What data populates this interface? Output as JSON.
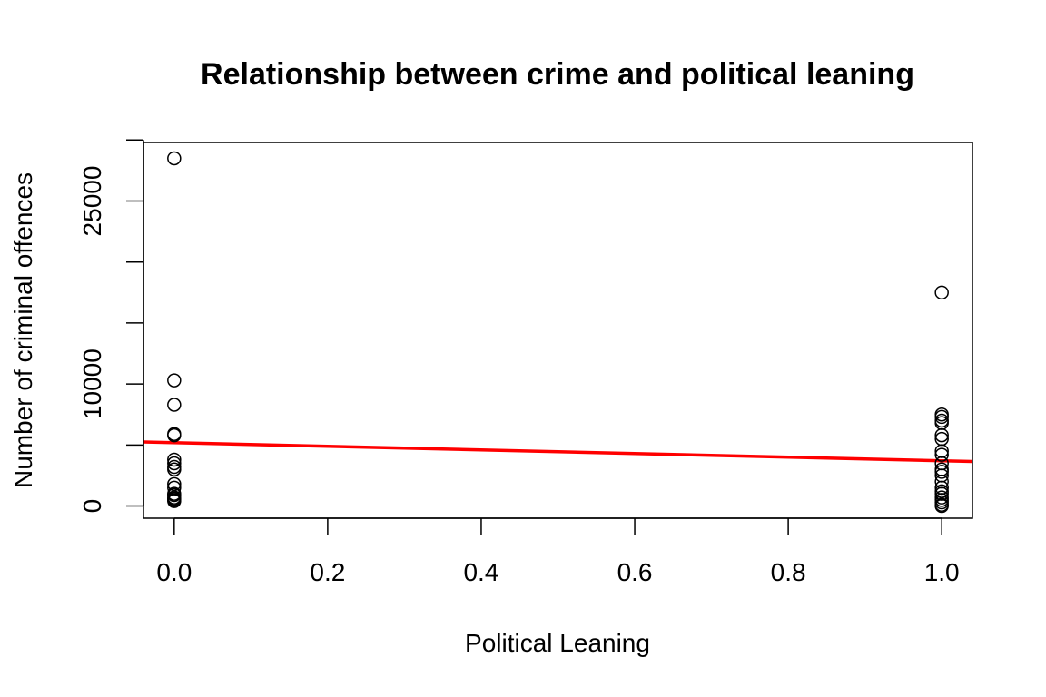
{
  "chart_data": {
    "type": "scatter",
    "title": "Relationship between crime and political leaning",
    "xlabel": "Political Leaning",
    "ylabel": "Number of criminal offences",
    "xlim": [
      -0.04,
      1.04
    ],
    "ylim": [
      -1000,
      29800
    ],
    "xticks": [
      0,
      0.2,
      0.4,
      0.6,
      0.8,
      1.0
    ],
    "xtick_labels": [
      "0.0",
      "0.2",
      "0.4",
      "0.6",
      "0.8",
      "1.0"
    ],
    "yticks": [
      0,
      5000,
      10000,
      15000,
      20000,
      25000,
      30000
    ],
    "ytick_labels": [
      "0",
      "",
      "10000",
      "",
      "",
      "25000",
      ""
    ],
    "grid": false,
    "point_style": "open-circle",
    "series": [
      {
        "x": [
          0,
          0,
          0,
          0,
          0,
          0,
          0,
          0,
          0,
          0,
          0,
          0,
          0,
          0,
          0,
          0,
          0,
          1,
          1,
          1,
          1,
          1,
          1,
          1,
          1,
          1,
          1,
          1,
          1,
          1,
          1,
          1,
          1,
          1,
          1,
          1,
          1,
          1,
          1
        ],
        "y": [
          28500,
          10300,
          8300,
          5900,
          5800,
          3800,
          3500,
          3200,
          3000,
          1800,
          1500,
          1000,
          900,
          700,
          600,
          500,
          400,
          17500,
          7500,
          7300,
          7000,
          6800,
          5800,
          5500,
          4500,
          4200,
          3500,
          3000,
          2800,
          2500,
          2000,
          1500,
          1200,
          1000,
          700,
          500,
          300,
          100,
          0
        ]
      }
    ],
    "fit_line": {
      "color": "#ff0000",
      "x": [
        -0.04,
        1.04
      ],
      "y": [
        5250,
        3650
      ]
    }
  }
}
